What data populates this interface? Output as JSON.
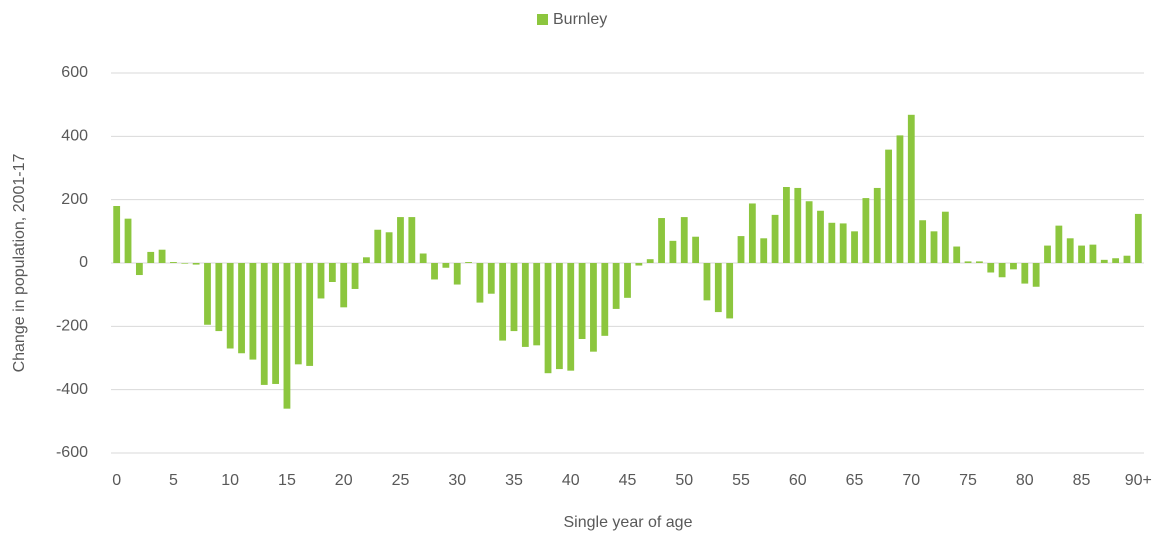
{
  "chart_data": {
    "type": "bar",
    "x_label": "Single year of age",
    "y_label": "Change in population, 2001-17",
    "categories": [
      "0",
      null,
      null,
      null,
      null,
      "5",
      null,
      null,
      null,
      null,
      "10",
      null,
      null,
      null,
      null,
      "15",
      null,
      null,
      null,
      null,
      "20",
      null,
      null,
      null,
      null,
      "25",
      null,
      null,
      null,
      null,
      "30",
      null,
      null,
      null,
      null,
      "35",
      null,
      null,
      null,
      null,
      "40",
      null,
      null,
      null,
      null,
      "45",
      null,
      null,
      null,
      null,
      "50",
      null,
      null,
      null,
      null,
      "55",
      null,
      null,
      null,
      null,
      "60",
      null,
      null,
      null,
      null,
      "65",
      null,
      null,
      null,
      null,
      "70",
      null,
      null,
      null,
      null,
      "75",
      null,
      null,
      null,
      null,
      "80",
      null,
      null,
      null,
      null,
      "85",
      null,
      null,
      null,
      null,
      "90+"
    ],
    "series": [
      {
        "name": "Burnley",
        "color": "#8cc63e",
        "values": [
          180,
          140,
          -38,
          35,
          42,
          3,
          -2,
          -5,
          -195,
          -215,
          -270,
          -285,
          -305,
          -385,
          -382,
          -460,
          -320,
          -325,
          -112,
          -60,
          -140,
          -82,
          18,
          105,
          97,
          145,
          145,
          30,
          -52,
          -15,
          -68,
          3,
          -125,
          -97,
          -245,
          -215,
          -265,
          -260,
          -348,
          -335,
          -340,
          -240,
          -280,
          -230,
          -145,
          -110,
          -8,
          12,
          142,
          70,
          145,
          83,
          -118,
          -155,
          -175,
          85,
          188,
          78,
          152,
          240,
          237,
          195,
          165,
          127,
          125,
          100,
          205,
          237,
          358,
          403,
          468,
          135,
          100,
          162,
          52,
          5,
          5,
          -30,
          -45,
          -20,
          -65,
          -75,
          55,
          118,
          78,
          55,
          58,
          10,
          15,
          23,
          155
        ]
      }
    ],
    "ylim": [
      -600,
      600
    ],
    "yticks": [
      -600,
      -400,
      -200,
      0,
      200,
      400,
      600
    ],
    "grid": true,
    "legend": "top"
  }
}
